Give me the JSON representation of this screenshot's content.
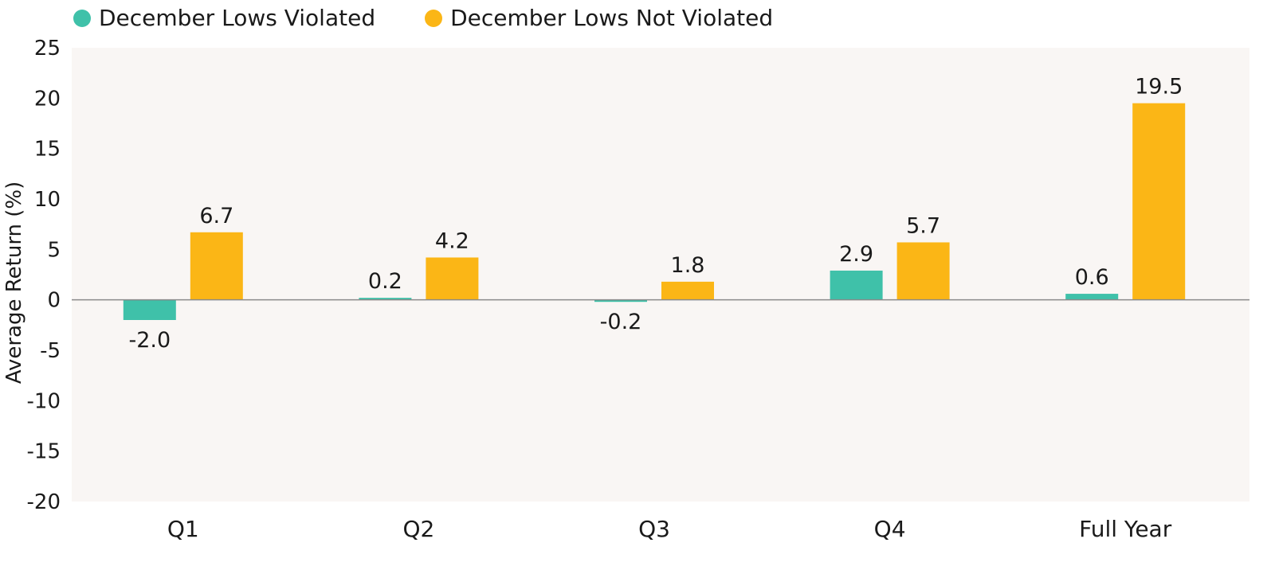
{
  "colors": {
    "series_violated": "#3fc1a9",
    "series_not_violated": "#fbb616",
    "plot_background": "#f9f6f4",
    "zero_line": "#8a8a8a",
    "text": "#1a1a1a"
  },
  "chart_data": {
    "type": "bar",
    "title": "",
    "xlabel": "",
    "ylabel": "Average Return (%)",
    "ylim": [
      -20,
      25
    ],
    "yticks": [
      25,
      20,
      15,
      10,
      5,
      0,
      -5,
      -10,
      -15,
      -20
    ],
    "grid": false,
    "legend_position": "top-left",
    "categories": [
      "Q1",
      "Q2",
      "Q3",
      "Q4",
      "Full Year"
    ],
    "series": [
      {
        "name": "December Lows Violated",
        "values": [
          -2.0,
          0.2,
          -0.2,
          2.9,
          0.6
        ],
        "labels": [
          "-2.0",
          "0.2",
          "-0.2",
          "2.9",
          "0.6"
        ]
      },
      {
        "name": "December Lows Not Violated",
        "values": [
          6.7,
          4.2,
          1.8,
          5.7,
          19.5
        ],
        "labels": [
          "6.7",
          "4.2",
          "1.8",
          "5.7",
          "19.5"
        ]
      }
    ]
  }
}
